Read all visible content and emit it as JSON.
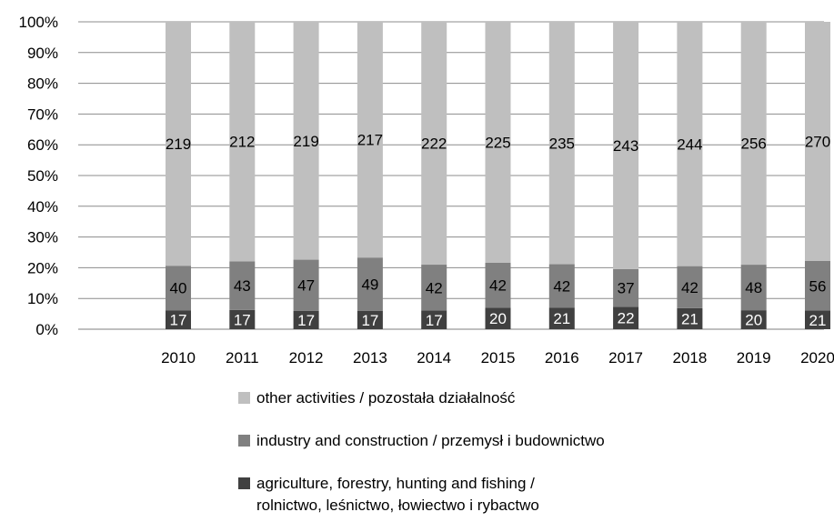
{
  "chart_data": {
    "type": "bar",
    "stacked": "percent",
    "categories": [
      "2010",
      "2011",
      "2012",
      "2013",
      "2014",
      "2015",
      "2016",
      "2017",
      "2018",
      "2019",
      "2020"
    ],
    "series": [
      {
        "name": "agriculture, forestry, hunting and fishing /\nrolnictwo, leśnictwo, łowiectwo i rybactwo",
        "color": "#404040",
        "values": [
          17,
          17,
          17,
          17,
          17,
          20,
          21,
          22,
          21,
          20,
          21
        ]
      },
      {
        "name": "industry and construction / przemysł i budownictwo",
        "color": "#808080",
        "values": [
          40,
          43,
          47,
          49,
          42,
          42,
          42,
          37,
          42,
          48,
          56
        ]
      },
      {
        "name": "other activities / pozostała działalność",
        "color": "#bfbfbf",
        "values": [
          219,
          212,
          219,
          217,
          222,
          225,
          235,
          243,
          244,
          256,
          270
        ]
      }
    ],
    "ylim": [
      0,
      100
    ],
    "yticks": [
      "0%",
      "10%",
      "20%",
      "30%",
      "40%",
      "50%",
      "60%",
      "70%",
      "80%",
      "90%",
      "100%"
    ],
    "grid": true,
    "legend_position": "bottom",
    "title": "",
    "xlabel": "",
    "ylabel": ""
  }
}
